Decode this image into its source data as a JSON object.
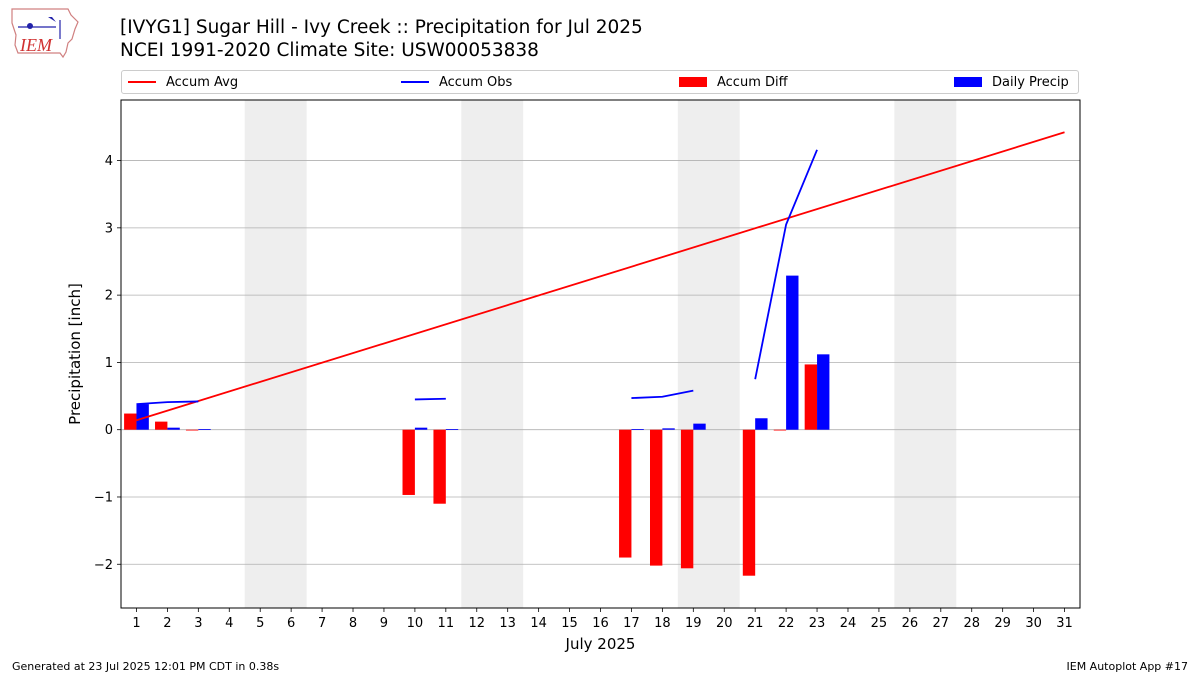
{
  "header": {
    "title_line1": "[IVYG1] Sugar Hill - Ivy Creek :: Precipitation for Jul 2025",
    "title_line2": "NCEI 1991-2020 Climate Site: USW00053838",
    "logo_text": "IEM"
  },
  "legend": {
    "accum_avg": "Accum Avg",
    "accum_obs": "Accum Obs",
    "accum_diff": "Accum Diff",
    "daily_precip": "Daily Precip"
  },
  "colors": {
    "accum_avg": "#ff0000",
    "accum_obs": "#0000ff",
    "accum_diff": "#ff0000",
    "daily_precip": "#0000ff",
    "weekend_shade": "#eeeeee",
    "grid": "#b0b0b0"
  },
  "chart_data": {
    "type": "bar",
    "xlabel": "July 2025",
    "ylabel": "Precipitation [inch]",
    "xlim": [
      0.5,
      31.5
    ],
    "ylim": [
      -2.65,
      4.9
    ],
    "yticks": [
      -2,
      -1,
      0,
      1,
      2,
      3,
      4
    ],
    "ytick_labels": [
      "−2",
      "−1",
      "0",
      "1",
      "2",
      "3",
      "4"
    ],
    "xticks": [
      1,
      2,
      3,
      4,
      5,
      6,
      7,
      8,
      9,
      10,
      11,
      12,
      13,
      14,
      15,
      16,
      17,
      18,
      19,
      20,
      21,
      22,
      23,
      24,
      25,
      26,
      27,
      28,
      29,
      30,
      31
    ],
    "grid": "y",
    "legend_position": "top",
    "weekend_shading": [
      [
        4.5,
        6.5
      ],
      [
        11.5,
        13.5
      ],
      [
        18.5,
        20.5
      ],
      [
        25.5,
        27.5
      ]
    ],
    "series": [
      {
        "name": "Accum Avg",
        "kind": "line",
        "points": [
          [
            1,
            0.14
          ],
          [
            31,
            4.42
          ]
        ]
      },
      {
        "name": "Accum Obs",
        "kind": "line",
        "segments": [
          [
            [
              1,
              0.38
            ],
            [
              2,
              0.41
            ],
            [
              3,
              0.42
            ]
          ],
          [
            [
              10,
              0.45
            ],
            [
              11,
              0.46
            ]
          ],
          [
            [
              17,
              0.47
            ],
            [
              18,
              0.49
            ],
            [
              19,
              0.58
            ]
          ],
          [
            [
              21,
              0.75
            ],
            [
              22,
              3.05
            ],
            [
              23,
              4.16
            ]
          ]
        ]
      },
      {
        "name": "Accum Diff",
        "kind": "bar",
        "days": [
          1,
          2,
          3,
          10,
          11,
          17,
          18,
          19,
          21,
          22,
          23
        ],
        "values": [
          0.24,
          0.12,
          -0.01,
          -0.97,
          -1.1,
          -1.9,
          -2.02,
          -2.06,
          -2.17,
          -0.01,
          0.97
        ]
      },
      {
        "name": "Daily Precip",
        "kind": "bar",
        "days": [
          1,
          2,
          3,
          10,
          11,
          17,
          18,
          19,
          21,
          22,
          23
        ],
        "values": [
          0.38,
          0.03,
          0.01,
          0.03,
          0.01,
          0.01,
          0.02,
          0.09,
          0.17,
          2.29,
          1.12
        ]
      }
    ]
  },
  "footer": {
    "generated": "Generated at 23 Jul 2025 12:01 PM CDT in 0.38s",
    "app": "IEM Autoplot App #17"
  }
}
